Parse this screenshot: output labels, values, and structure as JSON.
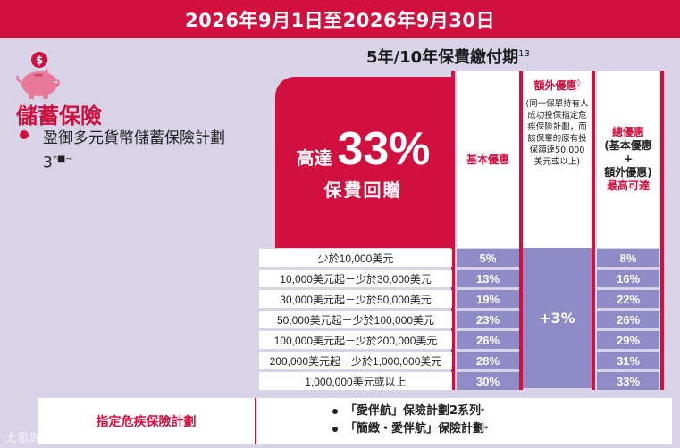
{
  "banner": {
    "date_range": "2026年9月1日至2026年9月30日"
  },
  "category": {
    "title": "儲蓄保險",
    "icon": "piggy-bank-icon"
  },
  "plan": {
    "name": "盈御多元貨幣儲蓄保險計劃3",
    "superscript": "*■~"
  },
  "period": {
    "label": "5年/10年保費繳付期",
    "superscript": "13"
  },
  "promo": {
    "prefix": "高達",
    "value": "33%",
    "caption": "保費回贈"
  },
  "columns": {
    "basic": "基本優惠",
    "extra_title": "額外優惠",
    "extra_mark": "◊",
    "extra_note": "(同一保單持有人成功投保指定危疾保險計劃，而該保單的原有投保額達50,000美元或以上)",
    "total_title": "總優惠",
    "total_sub1": "(基本優惠",
    "total_sub2": "+",
    "total_sub3": "額外優惠)",
    "total_sub4": "最高可達"
  },
  "tiers": [
    {
      "label": "少於10,000美元",
      "basic": "5%",
      "total": "8%"
    },
    {
      "label": "10,000美元起－少於30,000美元",
      "basic": "13%",
      "total": "16%"
    },
    {
      "label": "30,000美元起－少於50,000美元",
      "basic": "19%",
      "total": "22%"
    },
    {
      "label": "50,000美元起－少於100,000美元",
      "basic": "23%",
      "total": "26%"
    },
    {
      "label": "100,000美元起－少於200,000美元",
      "basic": "26%",
      "total": "29%"
    },
    {
      "label": "200,000美元起－少於1,000,000美元",
      "basic": "28%",
      "total": "31%"
    },
    {
      "label": "1,000,000美元或以上",
      "basic": "30%",
      "total": "33%"
    }
  ],
  "extra_value": "+3%",
  "bottom": {
    "label": "指定危疾保險計劃",
    "items": [
      {
        "text": "「愛伴航」保險計劃2系列",
        "mark": "*"
      },
      {
        "text": "「簡緻・愛伴航」保險計劃",
        "mark": "*"
      }
    ]
  },
  "watermark": "太歌跨境",
  "colors": {
    "brand_red": "#d1103f",
    "cell_purple": "#8e8bc6",
    "background": "#d9d3e7"
  }
}
